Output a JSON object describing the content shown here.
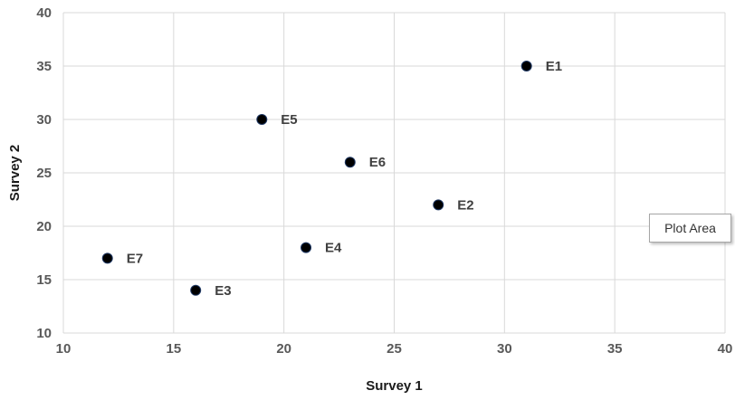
{
  "chart_data": {
    "type": "scatter",
    "xlabel": "Survey 1",
    "ylabel": "Survey 2",
    "xlim": [
      10,
      40
    ],
    "ylim": [
      10,
      40
    ],
    "xticks": [
      "10",
      "15",
      "20",
      "25",
      "30",
      "35",
      "40"
    ],
    "yticks": [
      "10",
      "15",
      "20",
      "25",
      "30",
      "35",
      "40"
    ],
    "grid": true,
    "marker_color": "#000000",
    "points": [
      {
        "label": "E1",
        "x": 31,
        "y": 35
      },
      {
        "label": "E2",
        "x": 27,
        "y": 22
      },
      {
        "label": "E3",
        "x": 16,
        "y": 14
      },
      {
        "label": "E4",
        "x": 21,
        "y": 18
      },
      {
        "label": "E5",
        "x": 19,
        "y": 30
      },
      {
        "label": "E6",
        "x": 23,
        "y": 26
      },
      {
        "label": "E7",
        "x": 12,
        "y": 17
      }
    ]
  },
  "tooltip": {
    "text": "Plot Area"
  }
}
